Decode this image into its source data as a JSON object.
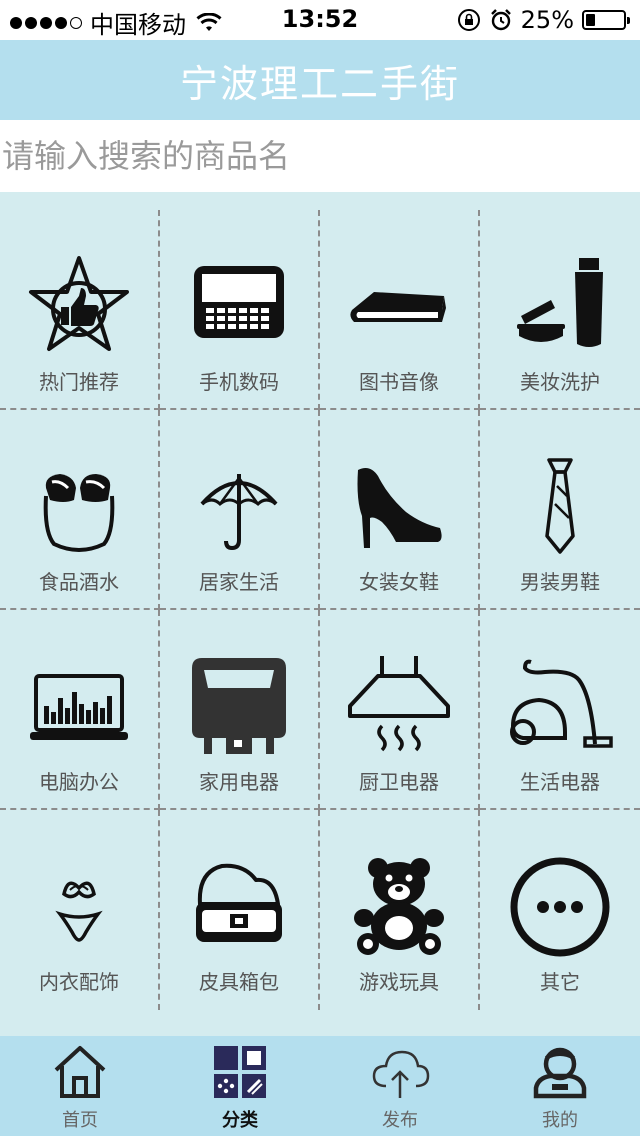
{
  "status_bar": {
    "carrier": "中国移动",
    "time": "13:52",
    "battery_percent": "25%",
    "battery_level": 0.25,
    "signal_dots_filled": 4,
    "signal_dots_total": 5
  },
  "nav": {
    "title": "宁波理工二手街"
  },
  "search": {
    "placeholder": "请输入搜索的商品名",
    "value": ""
  },
  "categories": [
    {
      "label": "热门推荐",
      "icon": "star-thumbs-up-icon"
    },
    {
      "label": "手机数码",
      "icon": "phone-icon"
    },
    {
      "label": "图书音像",
      "icon": "book-icon"
    },
    {
      "label": "美妆洗护",
      "icon": "cosmetics-icon"
    },
    {
      "label": "食品酒水",
      "icon": "bread-bag-icon"
    },
    {
      "label": "居家生活",
      "icon": "umbrella-icon"
    },
    {
      "label": "女装女鞋",
      "icon": "high-heel-icon"
    },
    {
      "label": "男装男鞋",
      "icon": "tie-icon"
    },
    {
      "label": "电脑办公",
      "icon": "laptop-icon"
    },
    {
      "label": "家用电器",
      "icon": "appliance-icon"
    },
    {
      "label": "厨卫电器",
      "icon": "range-hood-icon"
    },
    {
      "label": "生活电器",
      "icon": "vacuum-cleaner-icon"
    },
    {
      "label": "内衣配饰",
      "icon": "lingerie-icon"
    },
    {
      "label": "皮具箱包",
      "icon": "handbag-icon"
    },
    {
      "label": "游戏玩具",
      "icon": "teddy-bear-icon"
    },
    {
      "label": "其它",
      "icon": "more-icon"
    }
  ],
  "tabs": [
    {
      "label": "首页",
      "icon": "home-icon",
      "active": false
    },
    {
      "label": "分类",
      "icon": "category-icon",
      "active": true
    },
    {
      "label": "发布",
      "icon": "cloud-upload-icon",
      "active": false
    },
    {
      "label": "我的",
      "icon": "user-icon",
      "active": false
    }
  ],
  "colors": {
    "nav_bg": "#b4dfee",
    "content_bg": "#d4ecef",
    "tab_bg": "#b4dfee",
    "icon": "#111111",
    "category_icon_accent": "#2a2a5a"
  }
}
